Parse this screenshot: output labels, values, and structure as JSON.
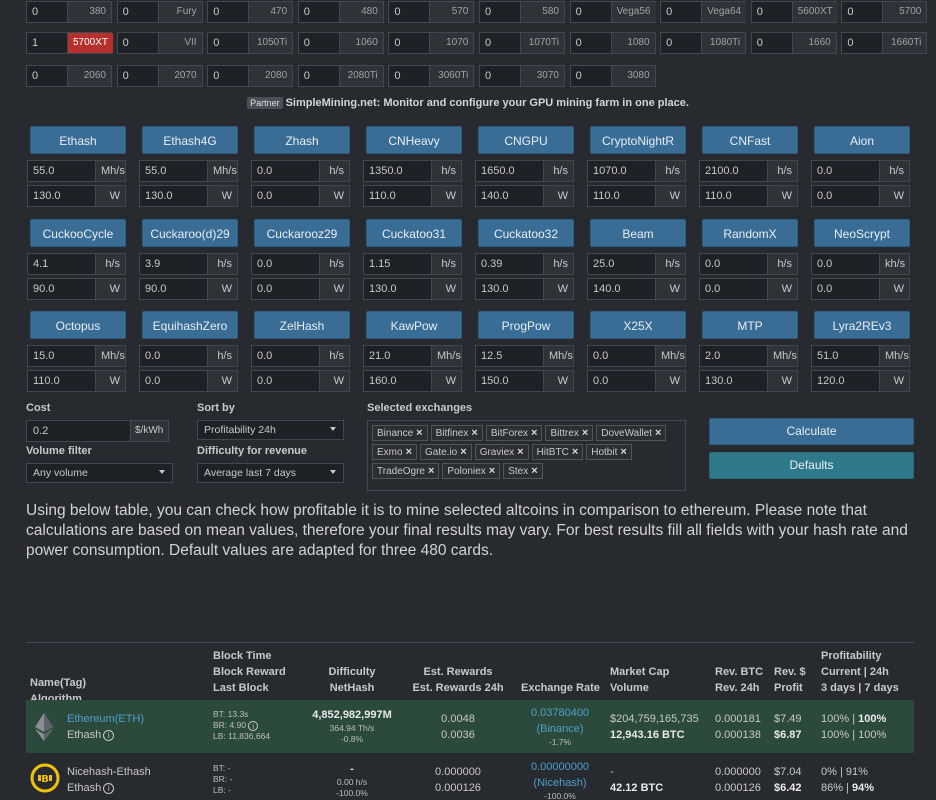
{
  "gpus": [
    [
      {
        "qty": "0",
        "name": "380"
      },
      {
        "qty": "0",
        "name": "Fury"
      },
      {
        "qty": "0",
        "name": "470"
      },
      {
        "qty": "0",
        "name": "480"
      },
      {
        "qty": "0",
        "name": "570"
      },
      {
        "qty": "0",
        "name": "580"
      },
      {
        "qty": "0",
        "name": "Vega56"
      },
      {
        "qty": "0",
        "name": "Vega64"
      },
      {
        "qty": "0",
        "name": "5600XT"
      },
      {
        "qty": "0",
        "name": "5700"
      }
    ],
    [
      {
        "qty": "1",
        "name": "5700XT",
        "highlight": true
      },
      {
        "qty": "0",
        "name": "VII"
      },
      {
        "qty": "0",
        "name": "1050Ti"
      },
      {
        "qty": "0",
        "name": "1060"
      },
      {
        "qty": "0",
        "name": "1070"
      },
      {
        "qty": "0",
        "name": "1070Ti"
      },
      {
        "qty": "0",
        "name": "1080"
      },
      {
        "qty": "0",
        "name": "1080Ti"
      },
      {
        "qty": "0",
        "name": "1660"
      },
      {
        "qty": "0",
        "name": "1660Ti"
      }
    ],
    [
      {
        "qty": "0",
        "name": "2060"
      },
      {
        "qty": "0",
        "name": "2070"
      },
      {
        "qty": "0",
        "name": "2080"
      },
      {
        "qty": "0",
        "name": "2080Ti"
      },
      {
        "qty": "0",
        "name": "3060Ti"
      },
      {
        "qty": "0",
        "name": "3070"
      },
      {
        "qty": "0",
        "name": "3080"
      }
    ]
  ],
  "partner": {
    "tag": "Partner",
    "text": "SimpleMining.net: Monitor and configure your GPU mining farm in one place."
  },
  "algos": [
    [
      {
        "name": "Ethash",
        "hash": "55.0",
        "hu": "Mh/s",
        "power": "130.0",
        "pu": "W"
      },
      {
        "name": "Ethash4G",
        "hash": "55.0",
        "hu": "Mh/s",
        "power": "130.0",
        "pu": "W"
      },
      {
        "name": "Zhash",
        "hash": "0.0",
        "hu": "h/s",
        "power": "0.0",
        "pu": "W"
      },
      {
        "name": "CNHeavy",
        "hash": "1350.0",
        "hu": "h/s",
        "power": "110.0",
        "pu": "W"
      },
      {
        "name": "CNGPU",
        "hash": "1650.0",
        "hu": "h/s",
        "power": "140.0",
        "pu": "W"
      },
      {
        "name": "CryptoNightR",
        "hash": "1070.0",
        "hu": "h/s",
        "power": "110.0",
        "pu": "W"
      },
      {
        "name": "CNFast",
        "hash": "2100.0",
        "hu": "h/s",
        "power": "110.0",
        "pu": "W"
      },
      {
        "name": "Aion",
        "hash": "0.0",
        "hu": "h/s",
        "power": "0.0",
        "pu": "W"
      }
    ],
    [
      {
        "name": "CuckooCycle",
        "hash": "4.1",
        "hu": "h/s",
        "power": "90.0",
        "pu": "W"
      },
      {
        "name": "Cuckaroo(d)29",
        "hash": "3.9",
        "hu": "h/s",
        "power": "90.0",
        "pu": "W"
      },
      {
        "name": "Cuckarooz29",
        "hash": "0.0",
        "hu": "h/s",
        "power": "0.0",
        "pu": "W"
      },
      {
        "name": "Cuckatoo31",
        "hash": "1.15",
        "hu": "h/s",
        "power": "130.0",
        "pu": "W"
      },
      {
        "name": "Cuckatoo32",
        "hash": "0.39",
        "hu": "h/s",
        "power": "130.0",
        "pu": "W"
      },
      {
        "name": "Beam",
        "hash": "25.0",
        "hu": "h/s",
        "power": "140.0",
        "pu": "W"
      },
      {
        "name": "RandomX",
        "hash": "0.0",
        "hu": "h/s",
        "power": "0.0",
        "pu": "W"
      },
      {
        "name": "NeoScrypt",
        "hash": "0.0",
        "hu": "kh/s",
        "power": "0.0",
        "pu": "W"
      }
    ],
    [
      {
        "name": "Octopus",
        "hash": "15.0",
        "hu": "Mh/s",
        "power": "110.0",
        "pu": "W"
      },
      {
        "name": "EquihashZero",
        "hash": "0.0",
        "hu": "h/s",
        "power": "0.0",
        "pu": "W"
      },
      {
        "name": "ZelHash",
        "hash": "0.0",
        "hu": "h/s",
        "power": "0.0",
        "pu": "W"
      },
      {
        "name": "KawPow",
        "hash": "21.0",
        "hu": "Mh/s",
        "power": "160.0",
        "pu": "W"
      },
      {
        "name": "ProgPow",
        "hash": "12.5",
        "hu": "Mh/s",
        "power": "150.0",
        "pu": "W"
      },
      {
        "name": "X25X",
        "hash": "0.0",
        "hu": "Mh/s",
        "power": "0.0",
        "pu": "W"
      },
      {
        "name": "MTP",
        "hash": "2.0",
        "hu": "Mh/s",
        "power": "130.0",
        "pu": "W"
      },
      {
        "name": "Lyra2REv3",
        "hash": "51.0",
        "hu": "Mh/s",
        "power": "120.0",
        "pu": "W"
      }
    ]
  ],
  "controls": {
    "cost_label": "Cost",
    "cost_value": "0.2",
    "cost_unit": "$/kWh",
    "sort_label": "Sort by",
    "sort_value": "Profitability 24h",
    "volume_label": "Volume filter",
    "volume_value": "Any volume",
    "difficulty_label": "Difficulty for revenue",
    "difficulty_value": "Average last 7 days",
    "exchanges_label": "Selected exchanges",
    "exchanges": [
      "Binance",
      "Bitfinex",
      "BitForex",
      "Bittrex",
      "DoveWallet",
      "Exmo",
      "Gate.io",
      "Graviex",
      "HitBTC",
      "Hotbit",
      "TradeOgre",
      "Poloniex",
      "Stex"
    ],
    "calculate": "Calculate",
    "defaults": "Defaults"
  },
  "intro": "Using below table, you can check how profitable it is to mine selected altcoins in comparison to ethereum. Please note that calculations are based on mean values, therefore your final results may vary. For best results fill all fields with your hash rate and power consumption. Default values are adapted for three 480 cards.",
  "table": {
    "headers": {
      "name": [
        "Name(Tag)",
        "Algorithm"
      ],
      "block": [
        "Block Time",
        "Block Reward",
        "Last Block"
      ],
      "difficulty": [
        "Difficulty",
        "NetHash"
      ],
      "rewards": [
        "Est. Rewards",
        "Est. Rewards 24h"
      ],
      "exchange": [
        "Exchange Rate"
      ],
      "market": [
        "Market Cap",
        "Volume"
      ],
      "revbtc": [
        "Rev. BTC",
        "Rev. 24h"
      ],
      "revusd": [
        "Rev. $",
        "Profit"
      ],
      "profit": [
        "Profitability",
        "Current | 24h",
        "3 days | 7 days"
      ]
    },
    "rows": [
      {
        "name": "Ethereum(ETH)",
        "algo": "Ethash",
        "bt": "BT: 13.3s",
        "br": "BR: 4.90",
        "lb": "LB: 11,836,664",
        "difficulty": "4,852,982,997M",
        "nethash": "364.94 Th/s",
        "diff_change": "-0.8%",
        "rew": "0.0048",
        "rew24": "0.0036",
        "rate": "0.03780400",
        "rate_ex": "(Binance)",
        "rate_change": "-1.7%",
        "mcap": "$204,759,165,735",
        "volume": "12,943.16 BTC",
        "revbtc": "0.000181",
        "rev24": "0.000138",
        "revusd": "$7.49",
        "profit_usd": "$6.87",
        "prof1a": "100% | ",
        "prof1b": "100%",
        "prof2": "100% | 100%"
      },
      {
        "name": "Nicehash-Ethash",
        "algo": "Ethash",
        "bt": "BT: -",
        "br": "BR: -",
        "lb": "LB: -",
        "difficulty": "-",
        "nethash": "0.00 h/s",
        "diff_change": "-100.0%",
        "rew": "0.000000",
        "rew24": "0.000126",
        "rate": "0.00000000",
        "rate_ex": "(Nicehash)",
        "rate_change": "-100.0%",
        "mcap": "-",
        "volume": "42.12 BTC",
        "revbtc": "0.000000",
        "rev24": "0.000126",
        "revusd": "$7.04",
        "profit_usd": "$6.42",
        "prof1": "0% | 91%",
        "prof2a": "86% | ",
        "prof2b": "94%"
      }
    ]
  }
}
